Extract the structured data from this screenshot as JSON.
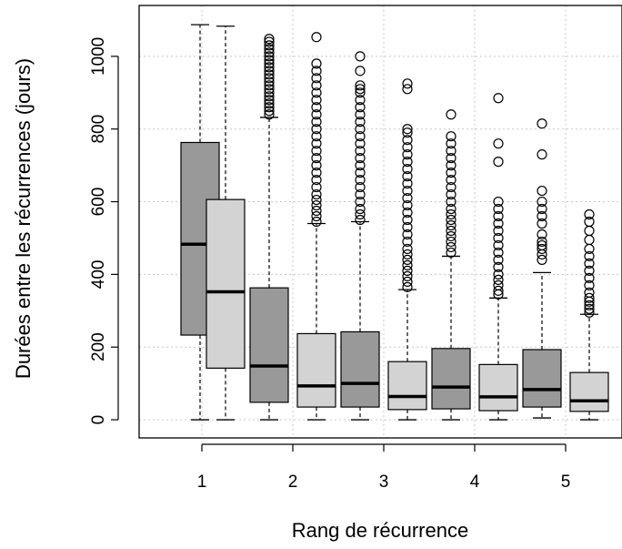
{
  "chart_data": {
    "type": "box",
    "xlabel": "Rang de récurrence",
    "ylabel": "Durées entre les récurrences (jours)",
    "ylim": [
      -50,
      1140
    ],
    "yticks": [
      0,
      200,
      400,
      600,
      800,
      1000
    ],
    "xticks": [
      1,
      2,
      3,
      4,
      5
    ],
    "grid": true,
    "colors": {
      "dark": "#999999",
      "light": "#d3d3d3",
      "grid": "#c8c8c8"
    },
    "boxes": [
      {
        "pos": 0.98,
        "fill": "dark",
        "whisker_low": 0,
        "q1": 233,
        "median": 483,
        "q3": 763,
        "whisker_high": 1087,
        "outliers": []
      },
      {
        "pos": 1.26,
        "fill": "light",
        "whisker_low": 0,
        "q1": 142,
        "median": 352,
        "q3": 606,
        "whisker_high": 1083,
        "outliers": []
      },
      {
        "pos": 1.74,
        "fill": "dark",
        "whisker_low": 0,
        "q1": 48,
        "median": 148,
        "q3": 363,
        "whisker_high": 832,
        "outliers": [
          840,
          850,
          860,
          870,
          880,
          890,
          900,
          910,
          920,
          930,
          940,
          950,
          960,
          970,
          980,
          990,
          1000,
          1010,
          1020,
          1030,
          1040,
          1048
        ]
      },
      {
        "pos": 2.26,
        "fill": "light",
        "whisker_low": 0,
        "q1": 35,
        "median": 93,
        "q3": 237,
        "whisker_high": 540,
        "outliers": [
          545,
          560,
          575,
          590,
          605,
          620,
          640,
          660,
          680,
          700,
          720,
          740,
          760,
          780,
          800,
          820,
          840,
          860,
          880,
          900,
          920,
          940,
          960,
          980,
          1053
        ]
      },
      {
        "pos": 2.74,
        "fill": "dark",
        "whisker_low": 0,
        "q1": 35,
        "median": 100,
        "q3": 242,
        "whisker_high": 545,
        "outliers": [
          550,
          565,
          580,
          600,
          620,
          640,
          660,
          680,
          700,
          720,
          740,
          760,
          780,
          800,
          820,
          840,
          860,
          880,
          900,
          910,
          920,
          960,
          1000
        ]
      },
      {
        "pos": 3.26,
        "fill": "light",
        "whisker_low": 0,
        "q1": 28,
        "median": 64,
        "q3": 160,
        "whisker_high": 358,
        "outliers": [
          365,
          380,
          395,
          410,
          425,
          440,
          455,
          470,
          490,
          510,
          530,
          550,
          570,
          590,
          610,
          630,
          650,
          670,
          690,
          710,
          730,
          750,
          770,
          790,
          800,
          910,
          925
        ]
      },
      {
        "pos": 3.74,
        "fill": "dark",
        "whisker_low": 0,
        "q1": 30,
        "median": 90,
        "q3": 196,
        "whisker_high": 450,
        "outliers": [
          460,
          475,
          490,
          505,
          520,
          535,
          550,
          565,
          580,
          600,
          620,
          640,
          660,
          680,
          700,
          720,
          740,
          760,
          780,
          840
        ]
      },
      {
        "pos": 4.26,
        "fill": "light",
        "whisker_low": 0,
        "q1": 25,
        "median": 63,
        "q3": 152,
        "whisker_high": 335,
        "outliers": [
          345,
          355,
          370,
          385,
          400,
          420,
          440,
          460,
          480,
          500,
          520,
          540,
          560,
          580,
          600,
          710,
          760,
          885
        ]
      },
      {
        "pos": 4.74,
        "fill": "dark",
        "whisker_low": 5,
        "q1": 35,
        "median": 83,
        "q3": 193,
        "whisker_high": 405,
        "outliers": [
          440,
          455,
          470,
          480,
          490,
          510,
          540,
          560,
          580,
          600,
          630,
          730,
          815
        ]
      },
      {
        "pos": 5.26,
        "fill": "light",
        "whisker_low": 0,
        "q1": 23,
        "median": 52,
        "q3": 130,
        "whisker_high": 290,
        "outliers": [
          295,
          305,
          315,
          325,
          335,
          350,
          370,
          390,
          410,
          430,
          450,
          470,
          495,
          520,
          545,
          565
        ]
      }
    ]
  }
}
